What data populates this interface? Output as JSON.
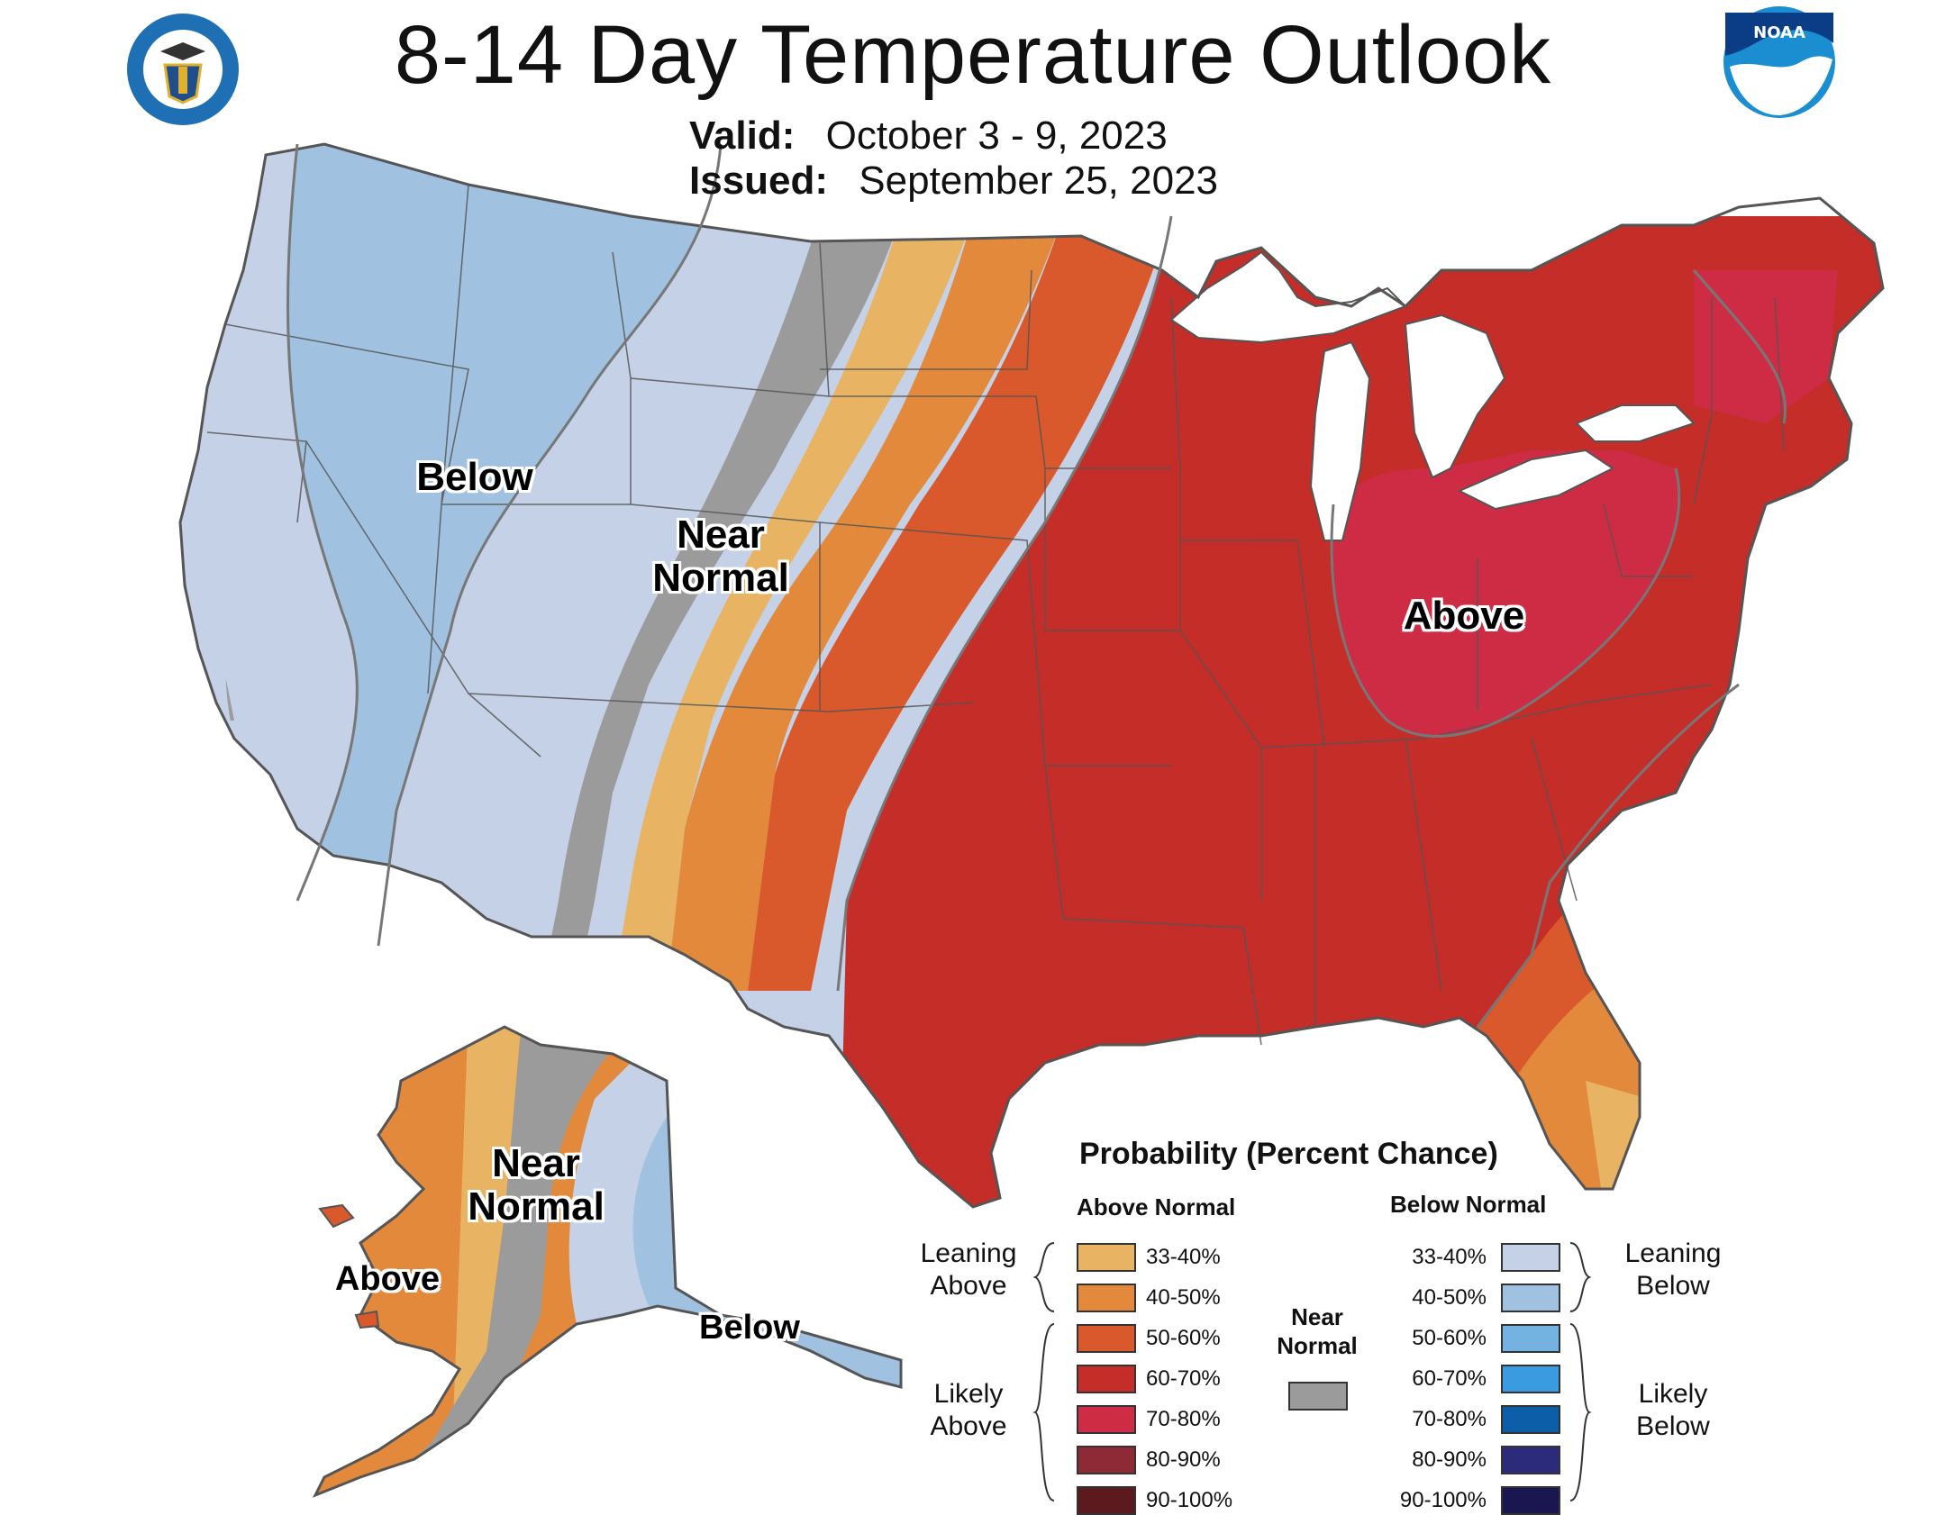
{
  "title": "8-14 Day Temperature Outlook",
  "valid_label": "Valid:",
  "valid_value": "October 3 - 9, 2023",
  "issued_label": "Issued:",
  "issued_value": "September 25, 2023",
  "logos": {
    "left": "department-of-commerce-seal",
    "right": "noaa-logo",
    "noaa_text": "NOAA"
  },
  "map_labels": {
    "conus_below": "Below",
    "conus_near_normal": "Near Normal",
    "conus_above": "Above",
    "ak_near_normal": "Near Normal",
    "ak_above": "Above",
    "ak_below": "Below"
  },
  "legend": {
    "title": "Probability (Percent Chance)",
    "above_header": "Above Normal",
    "below_header": "Below Normal",
    "above": [
      {
        "label": "33-40%",
        "color": "#e8b464"
      },
      {
        "label": "40-50%",
        "color": "#e3893c"
      },
      {
        "label": "50-60%",
        "color": "#d9582c"
      },
      {
        "label": "60-70%",
        "color": "#c52d29"
      },
      {
        "label": "70-80%",
        "color": "#cd2c44"
      },
      {
        "label": "80-90%",
        "color": "#8e2a35"
      },
      {
        "label": "90-100%",
        "color": "#5c1a1f"
      }
    ],
    "below": [
      {
        "label": "33-40%",
        "color": "#c4d1e6"
      },
      {
        "label": "40-50%",
        "color": "#a0c2e0"
      },
      {
        "label": "50-60%",
        "color": "#74b2e2"
      },
      {
        "label": "60-70%",
        "color": "#3b9be0"
      },
      {
        "label": "70-80%",
        "color": "#0d5ea8"
      },
      {
        "label": "80-90%",
        "color": "#2c2a7a"
      },
      {
        "label": "90-100%",
        "color": "#1a1750"
      }
    ],
    "near_normal": {
      "label": "Near Normal",
      "color": "#9b9b9b"
    },
    "leaning_above": "Leaning Above",
    "likely_above": "Likely Above",
    "leaning_below": "Leaning Below",
    "likely_below": "Likely Below"
  },
  "colors": {
    "near_normal": "#9b9b9b",
    "below_33_40": "#c4d1e6",
    "below_40_50": "#a0c2e0",
    "above_33_40": "#e8b464",
    "above_40_50": "#e3893c",
    "above_50_60": "#d9582c",
    "above_60_70": "#c52d29",
    "above_70_80": "#cd2c44"
  }
}
